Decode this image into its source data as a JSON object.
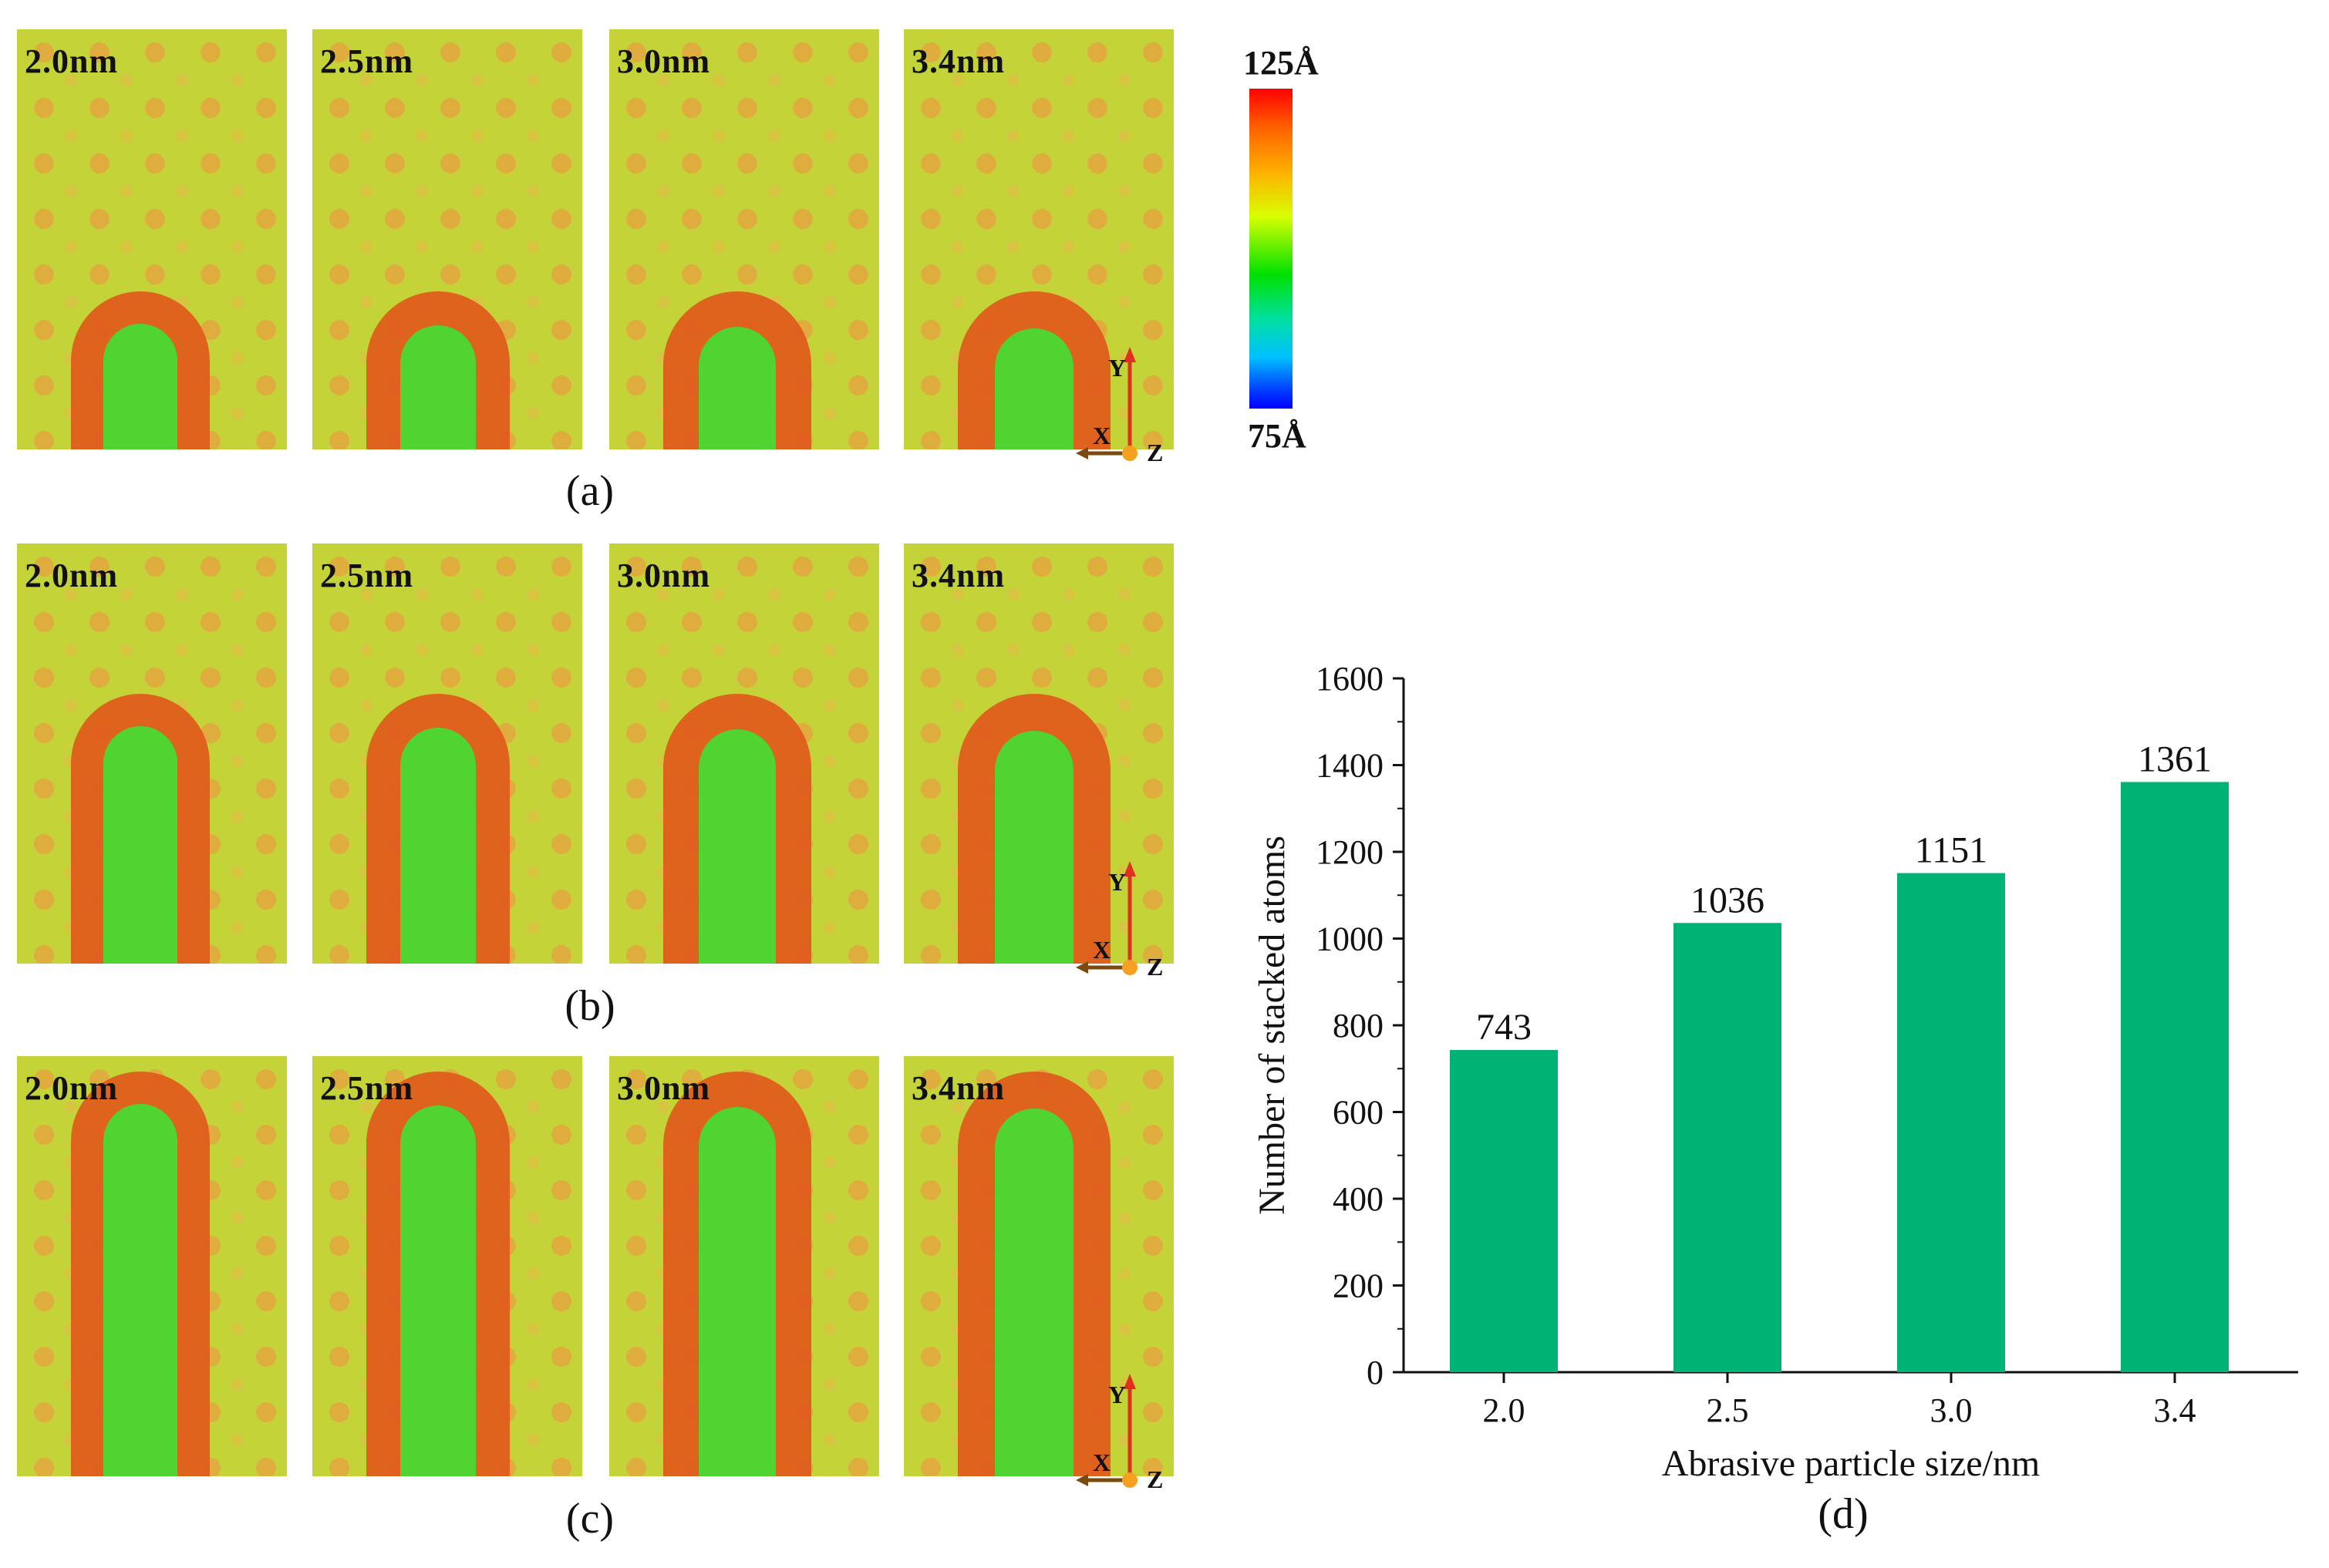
{
  "panel_rows": [
    {
      "caption": "(a)",
      "labels": [
        "2.0nm",
        "2.5nm",
        "3.0nm",
        "3.4nm"
      ],
      "stage": 1
    },
    {
      "caption": "(b)",
      "labels": [
        "2.0nm",
        "2.5nm",
        "3.0nm",
        "3.4nm"
      ],
      "stage": 2
    },
    {
      "caption": "(c)",
      "labels": [
        "2.0nm",
        "2.5nm",
        "3.0nm",
        "3.4nm"
      ],
      "stage": 3
    }
  ],
  "colorbar": {
    "max_label": "125Å",
    "min_label": "75Å"
  },
  "axes_triad": {
    "y": "Y",
    "x": "X",
    "z": "Z"
  },
  "colors": {
    "bar": "#00b274",
    "matrix": "#c4d438",
    "chip": "#e05a1c",
    "abrasive": "#4fd432"
  },
  "chart_data": {
    "type": "bar",
    "caption": "(d)",
    "categories": [
      "2.0",
      "2.5",
      "3.0",
      "3.4"
    ],
    "values": [
      743,
      1036,
      1151,
      1361
    ],
    "value_labels": [
      "743",
      "1036",
      "1151",
      "1361"
    ],
    "xlabel": "Abrasive particle size/nm",
    "ylabel": "Number of stacked atoms",
    "ylim": [
      0,
      1600
    ],
    "yticks": [
      "0",
      "200",
      "400",
      "600",
      "800",
      "1000",
      "1200",
      "1400",
      "1600"
    ],
    "grid": false,
    "legend": "none"
  }
}
